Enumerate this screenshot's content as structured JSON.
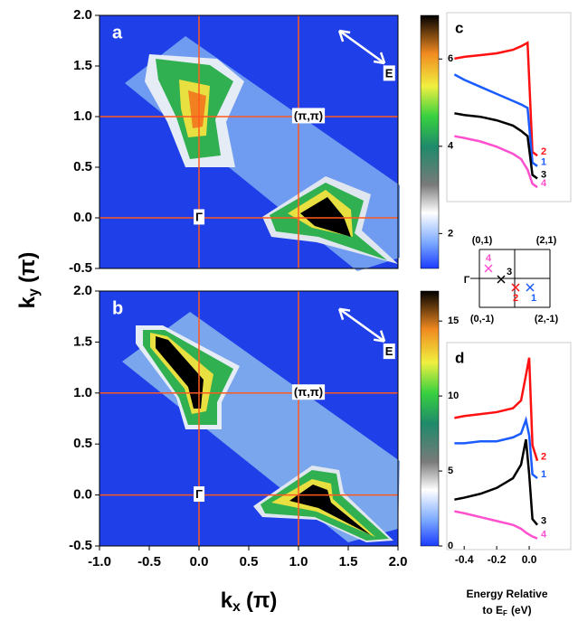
{
  "axis_labels": {
    "y": [
      "k",
      "y",
      "(π)"
    ],
    "x": [
      "k",
      "x",
      "(π)"
    ]
  },
  "chart_data": [
    {
      "type": "heatmap",
      "panel_label": "a",
      "xlim": [
        -1.0,
        2.0
      ],
      "ylim": [
        -0.5,
        2.0
      ],
      "yticks": [
        {
          "value": -0.5,
          "label": "-0.5"
        },
        {
          "value": 0,
          "label": "0.0"
        },
        0.5,
        {
          "value": 1,
          "label": "1.0"
        },
        1.5,
        {
          "value": 2,
          "label": "2.0"
        }
      ],
      "guide_lines": {
        "x": [
          0,
          1
        ],
        "y": [
          0,
          1
        ]
      },
      "annotations": [
        {
          "text": "(π,π)",
          "x": 1.1,
          "y": 1.0
        },
        {
          "text": "Γ",
          "x": 0,
          "y": 0
        },
        {
          "text": "E",
          "x": 1.91,
          "y": 1.42
        }
      ],
      "colorbar": {
        "lim": [
          1.2,
          7.0
        ],
        "ticks": [
          2,
          4,
          6
        ]
      }
    },
    {
      "type": "heatmap",
      "panel_label": "b",
      "xlim": [
        -1.0,
        2.0
      ],
      "ylim": [
        -0.5,
        2.0
      ],
      "xticks": [
        {
          "value": -1,
          "label": "-1.0"
        },
        -0.5,
        {
          "value": 0,
          "label": "0.0"
        },
        0.5,
        {
          "value": 1,
          "label": "1.0"
        },
        1.5,
        {
          "value": 2,
          "label": "2.0"
        }
      ],
      "yticks": [
        {
          "value": -0.5,
          "label": "-0.5"
        },
        {
          "value": 0,
          "label": "0.0"
        },
        0.5,
        {
          "value": 1,
          "label": "1.0"
        },
        1.5,
        {
          "value": 2,
          "label": "2.0"
        }
      ],
      "guide_lines": {
        "x": [
          0,
          1
        ],
        "y": [
          0,
          1
        ]
      },
      "annotations": [
        {
          "text": "(π,π)",
          "x": 1.1,
          "y": 1.0
        },
        {
          "text": "Γ",
          "x": 0,
          "y": 0
        },
        {
          "text": "E",
          "x": 1.91,
          "y": 1.4
        }
      ],
      "colorbar": {
        "lim": [
          0,
          17
        ],
        "ticks": [
          0,
          5,
          10,
          15
        ]
      }
    },
    {
      "type": "line",
      "panel_label": "c",
      "xlim": [
        -0.49,
        0.15
      ],
      "ylim": [
        0,
        10
      ],
      "x": [
        -0.46,
        -0.4,
        -0.3,
        -0.2,
        -0.1,
        -0.05,
        -0.01,
        0.02,
        0.05
      ],
      "series": [
        {
          "name": "2",
          "color": "#ff1010",
          "values": [
            7.7,
            7.8,
            7.9,
            8.0,
            8.2,
            8.4,
            8.6,
            2.4,
            2.2
          ]
        },
        {
          "name": "1",
          "color": "#1a5cff",
          "values": [
            6.8,
            6.5,
            6.1,
            5.7,
            5.3,
            5.1,
            4.9,
            1.8,
            1.6
          ]
        },
        {
          "name": "3",
          "color": "#000000",
          "values": [
            4.6,
            4.5,
            4.4,
            4.2,
            3.9,
            3.6,
            3.3,
            1.1,
            0.9
          ]
        },
        {
          "name": "4",
          "color": "#ff50d0",
          "values": [
            3.3,
            3.2,
            3.0,
            2.7,
            2.3,
            2.0,
            1.4,
            0.6,
            0.4
          ]
        }
      ]
    },
    {
      "type": "line",
      "panel_label": "d",
      "xlim": [
        -0.49,
        0.15
      ],
      "ylim": [
        0,
        10
      ],
      "x": [
        -0.46,
        -0.4,
        -0.3,
        -0.2,
        -0.1,
        -0.05,
        -0.02,
        0.0,
        0.02,
        0.05
      ],
      "xticks": [
        -0.4,
        -0.2,
        {
          "value": 0,
          "label": "0.0"
        }
      ],
      "xlabel": [
        "Energy Relative",
        "to E",
        "F",
        "(eV)"
      ],
      "series": [
        {
          "name": "2",
          "color": "#ff1010",
          "values": [
            6.4,
            6.5,
            6.6,
            6.7,
            6.9,
            7.3,
            8.6,
            9.5,
            5.0,
            4.2
          ]
        },
        {
          "name": "1",
          "color": "#1a5cff",
          "values": [
            5.1,
            5.1,
            5.2,
            5.2,
            5.4,
            5.6,
            6.3,
            5.5,
            3.5,
            3.3
          ]
        },
        {
          "name": "3",
          "color": "#000000",
          "values": [
            2.2,
            2.3,
            2.5,
            2.8,
            3.3,
            4.0,
            5.3,
            3.5,
            1.2,
            0.9
          ]
        },
        {
          "name": "4",
          "color": "#ff50d0",
          "values": [
            1.6,
            1.5,
            1.3,
            1.1,
            0.9,
            0.7,
            0.5,
            0.4,
            0.3,
            0.2
          ]
        }
      ]
    }
  ],
  "inset": {
    "corner_labels": [
      "(0,1)",
      "(2,1)",
      "(0,-1)",
      "(2,-1)"
    ],
    "origin_label": "Γ",
    "cut_labels": [
      "4",
      "3",
      "2",
      "1"
    ]
  }
}
